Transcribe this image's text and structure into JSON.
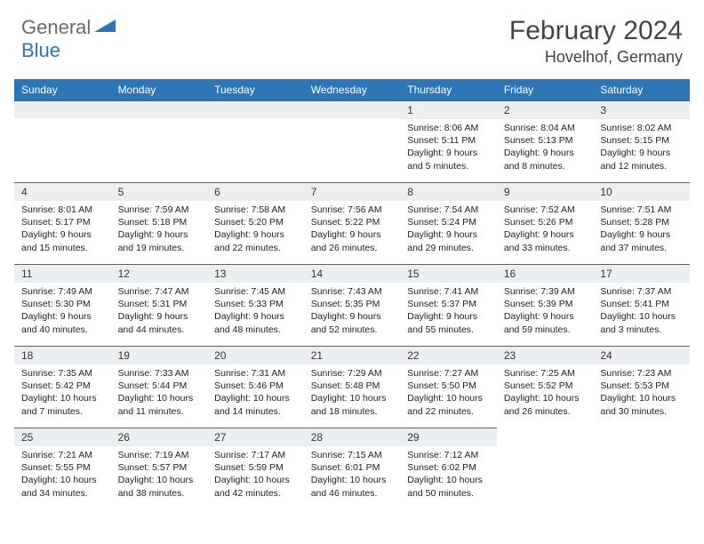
{
  "logo": {
    "word1": "General",
    "word2": "Blue"
  },
  "title": "February 2024",
  "location": "Hovelhof, Germany",
  "colors": {
    "header_bg": "#2e75b6",
    "header_text": "#ffffff",
    "daynum_bg": "#eceff1",
    "border": "#2e6ca8",
    "logo_gray": "#6b6b6b",
    "logo_blue": "#2e75b6"
  },
  "day_headers": [
    "Sunday",
    "Monday",
    "Tuesday",
    "Wednesday",
    "Thursday",
    "Friday",
    "Saturday"
  ],
  "weeks": [
    [
      null,
      null,
      null,
      null,
      {
        "n": "1",
        "sr": "Sunrise: 8:06 AM",
        "ss": "Sunset: 5:11 PM",
        "d1": "Daylight: 9 hours",
        "d2": "and 5 minutes."
      },
      {
        "n": "2",
        "sr": "Sunrise: 8:04 AM",
        "ss": "Sunset: 5:13 PM",
        "d1": "Daylight: 9 hours",
        "d2": "and 8 minutes."
      },
      {
        "n": "3",
        "sr": "Sunrise: 8:02 AM",
        "ss": "Sunset: 5:15 PM",
        "d1": "Daylight: 9 hours",
        "d2": "and 12 minutes."
      }
    ],
    [
      {
        "n": "4",
        "sr": "Sunrise: 8:01 AM",
        "ss": "Sunset: 5:17 PM",
        "d1": "Daylight: 9 hours",
        "d2": "and 15 minutes."
      },
      {
        "n": "5",
        "sr": "Sunrise: 7:59 AM",
        "ss": "Sunset: 5:18 PM",
        "d1": "Daylight: 9 hours",
        "d2": "and 19 minutes."
      },
      {
        "n": "6",
        "sr": "Sunrise: 7:58 AM",
        "ss": "Sunset: 5:20 PM",
        "d1": "Daylight: 9 hours",
        "d2": "and 22 minutes."
      },
      {
        "n": "7",
        "sr": "Sunrise: 7:56 AM",
        "ss": "Sunset: 5:22 PM",
        "d1": "Daylight: 9 hours",
        "d2": "and 26 minutes."
      },
      {
        "n": "8",
        "sr": "Sunrise: 7:54 AM",
        "ss": "Sunset: 5:24 PM",
        "d1": "Daylight: 9 hours",
        "d2": "and 29 minutes."
      },
      {
        "n": "9",
        "sr": "Sunrise: 7:52 AM",
        "ss": "Sunset: 5:26 PM",
        "d1": "Daylight: 9 hours",
        "d2": "and 33 minutes."
      },
      {
        "n": "10",
        "sr": "Sunrise: 7:51 AM",
        "ss": "Sunset: 5:28 PM",
        "d1": "Daylight: 9 hours",
        "d2": "and 37 minutes."
      }
    ],
    [
      {
        "n": "11",
        "sr": "Sunrise: 7:49 AM",
        "ss": "Sunset: 5:30 PM",
        "d1": "Daylight: 9 hours",
        "d2": "and 40 minutes."
      },
      {
        "n": "12",
        "sr": "Sunrise: 7:47 AM",
        "ss": "Sunset: 5:31 PM",
        "d1": "Daylight: 9 hours",
        "d2": "and 44 minutes."
      },
      {
        "n": "13",
        "sr": "Sunrise: 7:45 AM",
        "ss": "Sunset: 5:33 PM",
        "d1": "Daylight: 9 hours",
        "d2": "and 48 minutes."
      },
      {
        "n": "14",
        "sr": "Sunrise: 7:43 AM",
        "ss": "Sunset: 5:35 PM",
        "d1": "Daylight: 9 hours",
        "d2": "and 52 minutes."
      },
      {
        "n": "15",
        "sr": "Sunrise: 7:41 AM",
        "ss": "Sunset: 5:37 PM",
        "d1": "Daylight: 9 hours",
        "d2": "and 55 minutes."
      },
      {
        "n": "16",
        "sr": "Sunrise: 7:39 AM",
        "ss": "Sunset: 5:39 PM",
        "d1": "Daylight: 9 hours",
        "d2": "and 59 minutes."
      },
      {
        "n": "17",
        "sr": "Sunrise: 7:37 AM",
        "ss": "Sunset: 5:41 PM",
        "d1": "Daylight: 10 hours",
        "d2": "and 3 minutes."
      }
    ],
    [
      {
        "n": "18",
        "sr": "Sunrise: 7:35 AM",
        "ss": "Sunset: 5:42 PM",
        "d1": "Daylight: 10 hours",
        "d2": "and 7 minutes."
      },
      {
        "n": "19",
        "sr": "Sunrise: 7:33 AM",
        "ss": "Sunset: 5:44 PM",
        "d1": "Daylight: 10 hours",
        "d2": "and 11 minutes."
      },
      {
        "n": "20",
        "sr": "Sunrise: 7:31 AM",
        "ss": "Sunset: 5:46 PM",
        "d1": "Daylight: 10 hours",
        "d2": "and 14 minutes."
      },
      {
        "n": "21",
        "sr": "Sunrise: 7:29 AM",
        "ss": "Sunset: 5:48 PM",
        "d1": "Daylight: 10 hours",
        "d2": "and 18 minutes."
      },
      {
        "n": "22",
        "sr": "Sunrise: 7:27 AM",
        "ss": "Sunset: 5:50 PM",
        "d1": "Daylight: 10 hours",
        "d2": "and 22 minutes."
      },
      {
        "n": "23",
        "sr": "Sunrise: 7:25 AM",
        "ss": "Sunset: 5:52 PM",
        "d1": "Daylight: 10 hours",
        "d2": "and 26 minutes."
      },
      {
        "n": "24",
        "sr": "Sunrise: 7:23 AM",
        "ss": "Sunset: 5:53 PM",
        "d1": "Daylight: 10 hours",
        "d2": "and 30 minutes."
      }
    ],
    [
      {
        "n": "25",
        "sr": "Sunrise: 7:21 AM",
        "ss": "Sunset: 5:55 PM",
        "d1": "Daylight: 10 hours",
        "d2": "and 34 minutes."
      },
      {
        "n": "26",
        "sr": "Sunrise: 7:19 AM",
        "ss": "Sunset: 5:57 PM",
        "d1": "Daylight: 10 hours",
        "d2": "and 38 minutes."
      },
      {
        "n": "27",
        "sr": "Sunrise: 7:17 AM",
        "ss": "Sunset: 5:59 PM",
        "d1": "Daylight: 10 hours",
        "d2": "and 42 minutes."
      },
      {
        "n": "28",
        "sr": "Sunrise: 7:15 AM",
        "ss": "Sunset: 6:01 PM",
        "d1": "Daylight: 10 hours",
        "d2": "and 46 minutes."
      },
      {
        "n": "29",
        "sr": "Sunrise: 7:12 AM",
        "ss": "Sunset: 6:02 PM",
        "d1": "Daylight: 10 hours",
        "d2": "and 50 minutes."
      },
      null,
      null
    ]
  ]
}
